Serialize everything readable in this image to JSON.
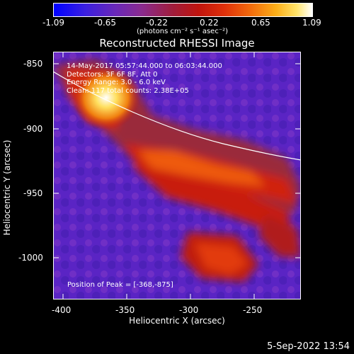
{
  "colorbar": {
    "tick_labels": [
      "-1.09",
      "-0.65",
      "-0.22",
      "0.22",
      "0.65",
      "1.09"
    ],
    "units_label": "(photons cm⁻² s⁻¹ asec⁻²)"
  },
  "plot": {
    "title": "Reconstructed RHESSI Image",
    "xlabel": "Heliocentric X (arcsec)",
    "ylabel": "Heliocentric Y (arcsec)",
    "x_ticks": [
      "-400",
      "-350",
      "-300",
      "-250"
    ],
    "y_ticks": [
      "-850",
      "-900",
      "-950",
      "-1000"
    ]
  },
  "info_lines": [
    "14-May-2017 05:57:44.000 to 06:03:44.000",
    "Detectors: 3F 6F 8F, Att 0",
    "Energy Range: 3.0 - 6.0 keV",
    "Clean: 117 total counts: 2.38E+05"
  ],
  "peak_label": "Position of Peak = [-368,-875]",
  "timestamp": "5-Sep-2022 13:54",
  "colors": {
    "background": "#000000",
    "low": "#0000ff",
    "mid_low": "#6a28b8",
    "mid": "#c0140e",
    "high": "#fcae18",
    "peak": "#ffffff"
  }
}
